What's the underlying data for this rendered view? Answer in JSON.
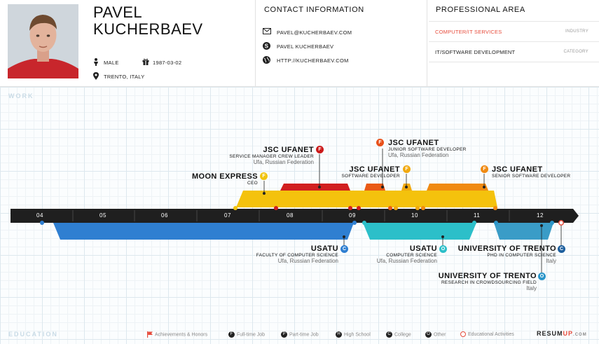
{
  "profile": {
    "first_name": "PAVEL",
    "last_name": "KUCHERBAEV",
    "gender": "MALE",
    "birthdate": "1987-03-02",
    "location": "TRENTO, ITALY"
  },
  "contact": {
    "title": "CONTACT INFORMATION",
    "email": "PAVEL@KUCHERBAEV.COM",
    "skype": "PAVEL KUCHERBAEV",
    "website": "HTTP://KUCHERBAEV.COM"
  },
  "professional": {
    "title": "PROFESSIONAL AREA",
    "industry_value": "COMPUTER/IT SERVICES",
    "industry_label": "INDUSTRY",
    "category_value": "IT/SOFTWARE DEVELOPMENT",
    "category_label": "CATEGORY"
  },
  "sections": {
    "work": "WORK",
    "education": "EDUCATION"
  },
  "years": [
    "04",
    "05",
    "06",
    "07",
    "08",
    "09",
    "10",
    "11",
    "12"
  ],
  "work": [
    {
      "org": "MOON EXPRESS",
      "role": "CEO",
      "badge": "F",
      "color": "#f1c40f"
    },
    {
      "org": "JSC UFANET",
      "role": "SERVICE MANAGER CREW LEADER",
      "loc": "Ufa, Russian Federation",
      "badge": "F",
      "color": "#cc1b1b"
    },
    {
      "org": "JSC UFANET",
      "role": "SOFTWARE DEVELOPER",
      "badge": "F",
      "color": "#f1a90f"
    },
    {
      "org": "JSC UFANET",
      "role": "JUNIOR SOFTWARE DEVELOPER",
      "loc": "Ufa, Russian Federation",
      "badge": "F",
      "color": "#e8501a"
    },
    {
      "org": "JSC UFANET",
      "role": "SENIOR SOFTWARE DEVELOPER",
      "badge": "F",
      "color": "#f08a12"
    }
  ],
  "education": [
    {
      "org": "USATU",
      "role": "FACULTY OF COMPUTER SCIENCE",
      "loc": "Ufa, Russian Federation",
      "badge": "C",
      "color": "#2f7fd1"
    },
    {
      "org": "USATU",
      "role": "COMPUTER SCIENCE",
      "loc": "Ufa, Russian Federation",
      "badge": "O",
      "color": "#2cbfc9"
    },
    {
      "org": "UNIVERSITY OF TRENTO",
      "role": "PHD IN COMPUTER SCIENCE",
      "loc": "Italy",
      "badge": "C",
      "color": "#1d5f9e"
    },
    {
      "org": "UNIVERSITY OF TRENTO",
      "role": "RESEARCH IN CROWDSOURCING FIELD",
      "loc": "Italy",
      "badge": "O",
      "color": "#2b95c9"
    }
  ],
  "legend": {
    "achievements": "Achievements & Honors",
    "fulltime": "Full-time Job",
    "parttime": "Part-time Job",
    "highschool": "High School",
    "college": "College",
    "other": "Other",
    "educational": "Educational Activities",
    "icon_fulltime": "F",
    "icon_parttime": "P",
    "icon_highschool": "H",
    "icon_college": "C",
    "icon_other": "O"
  },
  "brand": {
    "main": "RESUM",
    "accent": "UP",
    "suffix": ".COM"
  }
}
